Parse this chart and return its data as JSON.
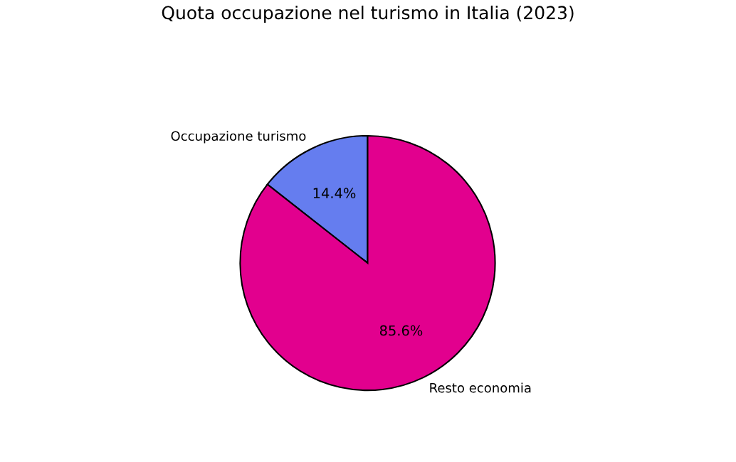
{
  "chart_data": {
    "type": "pie",
    "title": "Quota occupazione nel turismo in Italia (2023)",
    "categories": [
      "Occupazione turismo",
      "Resto economia"
    ],
    "values": [
      14.4,
      85.6
    ],
    "colors": [
      "#657def",
      "#e2008e"
    ],
    "value_labels": [
      "14.4%",
      "85.6%"
    ]
  }
}
